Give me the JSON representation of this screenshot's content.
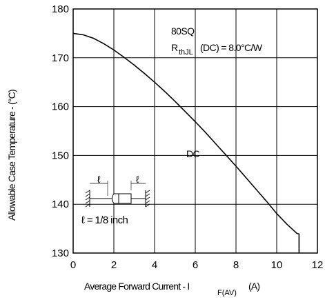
{
  "chart_data": {
    "type": "line",
    "title": "",
    "xlabel": "Average Forward Current - I",
    "xlabel_sub": "F(AV)",
    "xlabel_unit": "(A)",
    "ylabel": "Allowable Case Temperature - (°C)",
    "xlim": [
      0,
      12
    ],
    "ylim": [
      130,
      180
    ],
    "x_ticks": [
      "0",
      "2",
      "4",
      "6",
      "8",
      "10",
      "12"
    ],
    "y_ticks": [
      "130",
      "140",
      "150",
      "160",
      "170",
      "180"
    ],
    "grid": true,
    "series": [
      {
        "name": "DC",
        "x": [
          0,
          0.5,
          1,
          1.5,
          2,
          2.5,
          3,
          3.5,
          4,
          4.5,
          5,
          5.5,
          6,
          6.5,
          7,
          7.5,
          8,
          8.5,
          9,
          9.5,
          10,
          10.5,
          11,
          11.1,
          11.1
        ],
        "y": [
          175,
          174.7,
          174.0,
          172.9,
          171.6,
          170.1,
          168.5,
          166.8,
          165.0,
          163.1,
          161.1,
          159.0,
          156.9,
          154.7,
          152.4,
          150.1,
          147.8,
          145.4,
          143.0,
          140.6,
          138.1,
          135.9,
          134.0,
          133.9,
          130
        ]
      }
    ],
    "annotations": {
      "device": "80SQ",
      "rth_main": "R",
      "rth_sub": "thJL",
      "rth_value": "(DC) = 8.0°C/W",
      "curve_label": "DC",
      "lead_symbol": "ℓ",
      "lead_note": "ℓ = 1/8 inch"
    }
  }
}
